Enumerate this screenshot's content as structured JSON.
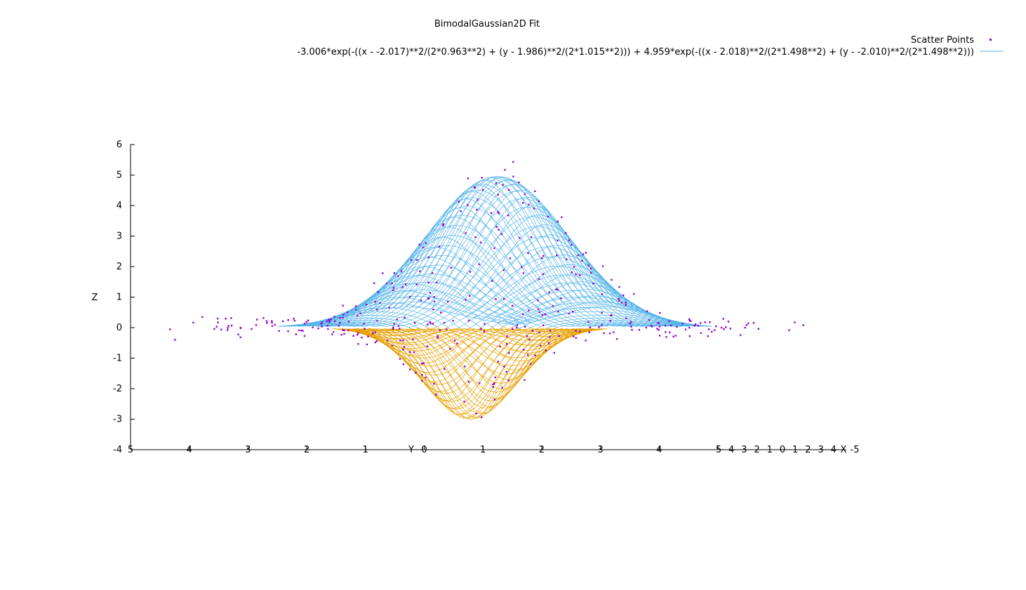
{
  "chart_data": {
    "type": "scatter",
    "title": "BimodalGaussian2D Fit",
    "xlabel": "X",
    "ylabel": "Y",
    "zlabel": "Z",
    "view": "3d-surface",
    "xlim": [
      -5,
      5
    ],
    "ylim": [
      5,
      -5
    ],
    "zlim": [
      -4,
      6
    ],
    "z_ticks": [
      "6",
      "5",
      "4",
      "3",
      "2",
      "1",
      "0",
      "-1",
      "-2",
      "-3",
      "-4"
    ],
    "y_ticks": [
      "5",
      "4",
      "3",
      "2",
      "1",
      "0",
      "1",
      "2",
      "3",
      "4",
      "5"
    ],
    "x_ticks": [
      "5",
      "4",
      "3",
      "2",
      "1",
      "0",
      "1",
      "2",
      "3",
      "4",
      "-5"
    ],
    "grid": false,
    "legend": {
      "position": "top-right",
      "entries": [
        {
          "label": "Scatter Points",
          "color": "#9400d3",
          "style": "points"
        },
        {
          "label": "-3.006*exp(-((x - -2.017)**2/(2*0.963**2) + (y - 1.986)**2/(2*1.015**2))) + 4.959*exp(-((x - 2.018)**2/(2*1.498**2) + (y - -2.010)**2/(2*1.498**2)))",
          "color": "#56b4e9",
          "style": "line"
        }
      ]
    },
    "fit": {
      "function": "bimodal gaussian 2d",
      "components": [
        {
          "amplitude": -3.006,
          "x0": -2.017,
          "y0": 1.986,
          "sigma_x": 0.963,
          "sigma_y": 1.015
        },
        {
          "amplitude": 4.959,
          "x0": 2.018,
          "y0": -2.01,
          "sigma_x": 1.498,
          "sigma_y": 1.498
        }
      ]
    },
    "surface_colors": {
      "positive": "#56b4e9",
      "negative": "#e69f00"
    },
    "scatter": {
      "count": 400,
      "x_range": [
        -5,
        5
      ],
      "y_range": [
        -5,
        5
      ],
      "noise": 0.2
    }
  }
}
